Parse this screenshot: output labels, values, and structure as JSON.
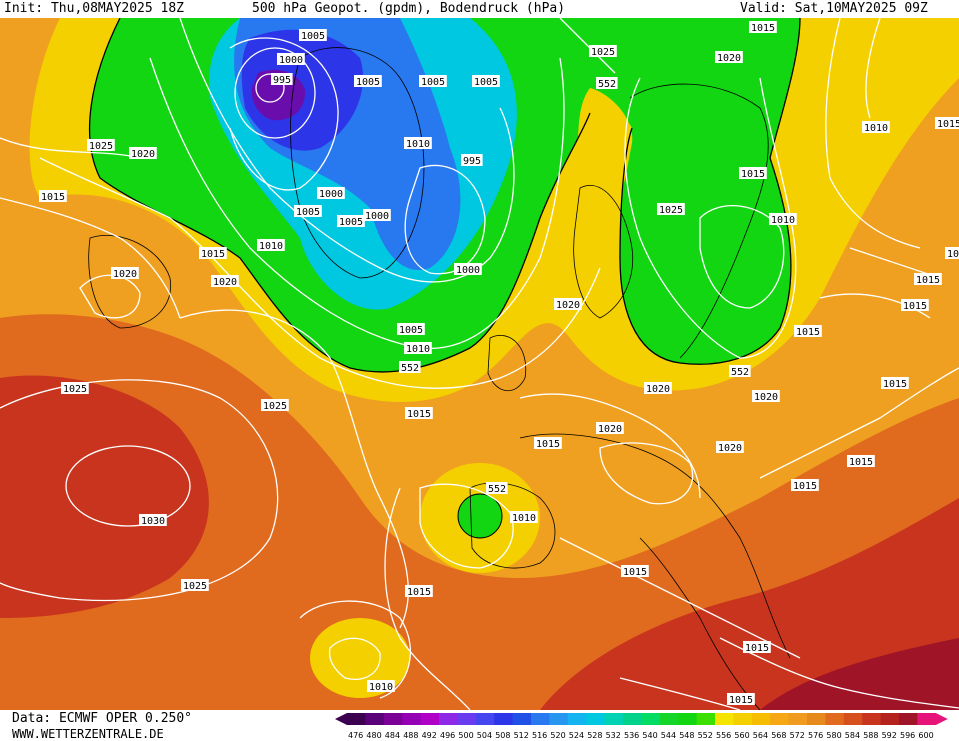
{
  "header": {
    "init": "Init: Thu,08MAY2025 18Z",
    "title": "500 hPa Geopot. (gpdm), Bodendruck (hPa)",
    "valid": "Valid: Sat,10MAY2025 09Z"
  },
  "footer": {
    "source": "Data: ECMWF OPER 0.250°",
    "website": "WWW.WETTERZENTRALE.DE"
  },
  "colors": {
    "purple": "#6a0dad",
    "blue": "#2d35e8",
    "cyan": "#00c8e0",
    "green": "#11d611",
    "yellow": "#f5e400",
    "orange": "#f0a020",
    "dark_orange": "#e06a1e",
    "red": "#c8341e"
  },
  "scale": {
    "labels": [
      "476",
      "480",
      "484",
      "488",
      "492",
      "496",
      "500",
      "504",
      "508",
      "512",
      "516",
      "520",
      "524",
      "528",
      "532",
      "536",
      "540",
      "544",
      "548",
      "552",
      "556",
      "560",
      "564",
      "568",
      "572",
      "576",
      "580",
      "584",
      "588",
      "592",
      "596",
      "600"
    ],
    "colors": [
      "#3c0050",
      "#5a0078",
      "#7a0096",
      "#9400b4",
      "#b000c8",
      "#8c28e6",
      "#6a3cf0",
      "#4646f0",
      "#2d35e8",
      "#2050e6",
      "#2878f0",
      "#2896f0",
      "#14b4f0",
      "#00c8e0",
      "#00d2b4",
      "#00d28c",
      "#00dc64",
      "#14d628",
      "#11d611",
      "#3ce000",
      "#f5e400",
      "#f5d000",
      "#f5bc00",
      "#f5a814",
      "#f09a1e",
      "#e68a1e",
      "#e06a1e",
      "#d6501e",
      "#c8341e",
      "#b4221e",
      "#a01428",
      "#e6147a"
    ]
  },
  "map": {
    "pressure_labels": [
      {
        "text": "1005"
      },
      {
        "text": "1000"
      },
      {
        "text": "995"
      },
      {
        "text": "1005"
      },
      {
        "text": "1005"
      },
      {
        "text": "1025"
      },
      {
        "text": "1020"
      },
      {
        "text": "1015"
      },
      {
        "text": "1015"
      },
      {
        "text": "1020"
      },
      {
        "text": "1020"
      },
      {
        "text": "1010"
      },
      {
        "text": "995"
      },
      {
        "text": "1000"
      },
      {
        "text": "1005"
      },
      {
        "text": "1005"
      },
      {
        "text": "1000"
      },
      {
        "text": "1010"
      },
      {
        "text": "1000"
      },
      {
        "text": "1005"
      },
      {
        "text": "1010"
      },
      {
        "text": "1025"
      },
      {
        "text": "1020"
      },
      {
        "text": "1025"
      },
      {
        "text": "1015"
      },
      {
        "text": "1010"
      },
      {
        "text": "1005"
      },
      {
        "text": "1010"
      },
      {
        "text": "1015"
      },
      {
        "text": "1015"
      },
      {
        "text": "1015"
      },
      {
        "text": "1015"
      },
      {
        "text": "1015"
      },
      {
        "text": "1020"
      },
      {
        "text": "1020"
      },
      {
        "text": "1020"
      },
      {
        "text": "1020"
      },
      {
        "text": "1020"
      },
      {
        "text": "1015"
      },
      {
        "text": "1015"
      },
      {
        "text": "1015"
      },
      {
        "text": "1025"
      },
      {
        "text": "1025"
      },
      {
        "text": "1030"
      },
      {
        "text": "1025"
      },
      {
        "text": "1015"
      },
      {
        "text": "1010"
      },
      {
        "text": "1015"
      },
      {
        "text": "1015"
      },
      {
        "text": "1015"
      },
      {
        "text": "1015"
      },
      {
        "text": "1015"
      },
      {
        "text": "1010"
      },
      {
        "text": "1010"
      }
    ],
    "geopotential_labels": [
      {
        "text": "552"
      },
      {
        "text": "552"
      },
      {
        "text": "552"
      },
      {
        "text": "552"
      }
    ]
  }
}
